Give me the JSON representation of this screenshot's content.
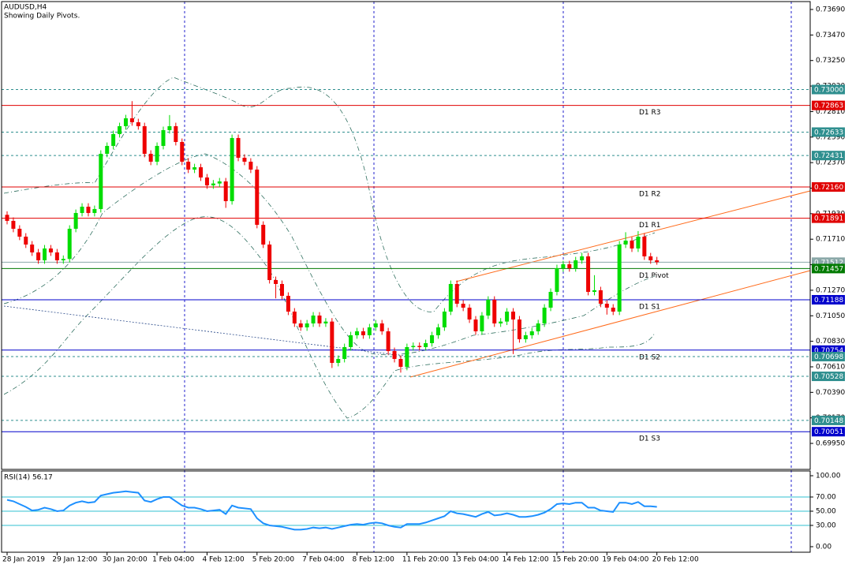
{
  "chart_data": {
    "type": "candlestick",
    "title": "AUDUSD,H4",
    "subtitle": "Showing Daily Pivots.",
    "up_color": "#00dd00",
    "down_color": "#ee0000",
    "ylim": [
      0.69726,
      0.73758
    ],
    "yticks": [
      {
        "value": 0.7369,
        "label": "0.73690"
      },
      {
        "value": 0.7347,
        "label": "0.73470"
      },
      {
        "value": 0.7325,
        "label": "0.73250"
      },
      {
        "value": 0.7303,
        "label": "0.73030"
      },
      {
        "value": 0.7281,
        "label": "0.72810"
      },
      {
        "value": 0.7259,
        "label": "0.72590"
      },
      {
        "value": 0.7237,
        "label": "0.72370"
      },
      {
        "value": 0.7215,
        "label": "0.72150"
      },
      {
        "value": 0.7193,
        "label": "0.71930"
      },
      {
        "value": 0.7171,
        "label": "0.71710"
      },
      {
        "value": 0.7149,
        "label": "0.71490"
      },
      {
        "value": 0.7127,
        "label": "0.71270"
      },
      {
        "value": 0.7105,
        "label": "0.71050"
      },
      {
        "value": 0.7083,
        "label": "0.70830"
      },
      {
        "value": 0.7061,
        "label": "0.70610"
      },
      {
        "value": 0.7039,
        "label": "0.70390"
      },
      {
        "value": 0.7017,
        "label": "0.70170"
      },
      {
        "value": 0.6995,
        "label": "0.69950"
      }
    ],
    "levels": [
      {
        "value": 0.73,
        "label": "0.73000",
        "color": "#2f8f8f",
        "dashed": true
      },
      {
        "value": 0.72863,
        "label": "0.72863",
        "color": "#e00000",
        "dashed": false,
        "name": "D1  R3"
      },
      {
        "value": 0.72633,
        "label": "0.72633",
        "color": "#2f8f8f",
        "dashed": true
      },
      {
        "value": 0.72431,
        "label": "0.72431",
        "color": "#2f8f8f",
        "dashed": true
      },
      {
        "value": 0.7216,
        "label": "0.72160",
        "color": "#e00000",
        "dashed": false,
        "name": "D1  R2"
      },
      {
        "value": 0.71891,
        "label": "0.71891",
        "color": "#e00000",
        "dashed": false,
        "name": "D1  R1"
      },
      {
        "value": 0.71512,
        "label": "0.71512",
        "color": "#8aa8a8",
        "dashed": false
      },
      {
        "value": 0.71457,
        "label": "0.71457",
        "color": "#007a00",
        "dashed": false,
        "name": "D1  Pivot"
      },
      {
        "value": 0.71188,
        "label": "0.71188",
        "color": "#0000cc",
        "dashed": false,
        "name": "D1  S1"
      },
      {
        "value": 0.70754,
        "label": "0.70754",
        "color": "#0000cc",
        "dashed": false,
        "name": "D1  S2"
      },
      {
        "value": 0.70698,
        "label": "0.70698",
        "color": "#2f8f8f",
        "dashed": true
      },
      {
        "value": 0.70528,
        "label": "0.70528",
        "color": "#2f8f8f",
        "dashed": true
      },
      {
        "value": 0.70148,
        "label": "0.70148",
        "color": "#2f8f8f",
        "dashed": true
      },
      {
        "value": 0.70051,
        "label": "0.70051",
        "color": "#0000cc",
        "dashed": false,
        "name": "D1  S3"
      }
    ],
    "time_labels": [
      "28 Jan 2019",
      "29 Jan 12:00",
      "30 Jan 20:00",
      "1 Feb 04:00",
      "4 Feb 12:00",
      "5 Feb 20:00",
      "7 Feb 04:00",
      "8 Feb 12:00",
      "11 Feb 20:00",
      "13 Feb 04:00",
      "14 Feb 12:00",
      "15 Feb 20:00",
      "19 Feb 04:00",
      "20 Feb 12:00"
    ],
    "candles": [
      [
        0.7192,
        0.7195,
        0.71838,
        0.71868
      ],
      [
        0.71868,
        0.71898,
        0.7177,
        0.718
      ],
      [
        0.718,
        0.7183,
        0.71702,
        0.71732
      ],
      [
        0.71732,
        0.71762,
        0.71634,
        0.71664
      ],
      [
        0.71664,
        0.71694,
        0.71566,
        0.71596
      ],
      [
        0.71596,
        0.71626,
        0.71498,
        0.71528
      ],
      [
        0.71528,
        0.7166,
        0.71498,
        0.7163
      ],
      [
        0.7163,
        0.7166,
        0.71566,
        0.71596
      ],
      [
        0.71596,
        0.71626,
        0.71498,
        0.71528
      ],
      [
        0.71528,
        0.7157,
        0.71498,
        0.7154
      ],
      [
        0.7154,
        0.7183,
        0.7151,
        0.718
      ],
      [
        0.718,
        0.71966,
        0.7177,
        0.71936
      ],
      [
        0.71936,
        0.7202,
        0.71906,
        0.7199
      ],
      [
        0.7199,
        0.7202,
        0.71906,
        0.71936
      ],
      [
        0.71936,
        0.72,
        0.71906,
        0.7197
      ],
      [
        0.7197,
        0.72476,
        0.7194,
        0.72446
      ],
      [
        0.72446,
        0.72544,
        0.72416,
        0.72514
      ],
      [
        0.72514,
        0.72646,
        0.72484,
        0.72616
      ],
      [
        0.72616,
        0.72714,
        0.72586,
        0.72684
      ],
      [
        0.72684,
        0.72782,
        0.72654,
        0.72752
      ],
      [
        0.72752,
        0.729,
        0.72688,
        0.72718
      ],
      [
        0.72718,
        0.72748,
        0.72654,
        0.72684
      ],
      [
        0.72684,
        0.72714,
        0.72416,
        0.72446
      ],
      [
        0.72446,
        0.72476,
        0.72348,
        0.72378
      ],
      [
        0.72378,
        0.72544,
        0.72348,
        0.72514
      ],
      [
        0.72514,
        0.7268,
        0.72484,
        0.7265
      ],
      [
        0.7265,
        0.7278,
        0.7262,
        0.72684
      ],
      [
        0.72684,
        0.72714,
        0.72518,
        0.72548
      ],
      [
        0.72548,
        0.72578,
        0.72348,
        0.72378
      ],
      [
        0.72378,
        0.72408,
        0.7228,
        0.7231
      ],
      [
        0.7231,
        0.7236,
        0.7228,
        0.7233
      ],
      [
        0.7233,
        0.7236,
        0.72212,
        0.72242
      ],
      [
        0.72242,
        0.72272,
        0.72144,
        0.72174
      ],
      [
        0.72174,
        0.7222,
        0.72144,
        0.7219
      ],
      [
        0.7219,
        0.72238,
        0.7216,
        0.72208
      ],
      [
        0.72208,
        0.72238,
        0.7198,
        0.72038
      ],
      [
        0.72038,
        0.72612,
        0.72008,
        0.72582
      ],
      [
        0.72582,
        0.72612,
        0.72382,
        0.72412
      ],
      [
        0.72412,
        0.72442,
        0.72348,
        0.72378
      ],
      [
        0.72378,
        0.72408,
        0.7228,
        0.7231
      ],
      [
        0.7231,
        0.7234,
        0.71804,
        0.71834
      ],
      [
        0.71834,
        0.71864,
        0.71634,
        0.71664
      ],
      [
        0.71664,
        0.71694,
        0.71328,
        0.71358
      ],
      [
        0.71358,
        0.71388,
        0.712,
        0.71324
      ],
      [
        0.71324,
        0.71354,
        0.71192,
        0.71222
      ],
      [
        0.71222,
        0.71252,
        0.71056,
        0.71086
      ],
      [
        0.71086,
        0.71116,
        0.70954,
        0.70984
      ],
      [
        0.70984,
        0.71014,
        0.7092,
        0.7095
      ],
      [
        0.7095,
        0.71014,
        0.7092,
        0.70984
      ],
      [
        0.70984,
        0.71082,
        0.70954,
        0.71052
      ],
      [
        0.71052,
        0.71082,
        0.70954,
        0.70984
      ],
      [
        0.70984,
        0.7103,
        0.70954,
        0.71
      ],
      [
        0.71,
        0.7103,
        0.706,
        0.70644
      ],
      [
        0.70644,
        0.70708,
        0.70614,
        0.70678
      ],
      [
        0.70678,
        0.7081,
        0.70648,
        0.7078
      ],
      [
        0.7078,
        0.70912,
        0.7075,
        0.70882
      ],
      [
        0.70882,
        0.70946,
        0.70852,
        0.70916
      ],
      [
        0.70916,
        0.70946,
        0.70852,
        0.70882
      ],
      [
        0.70882,
        0.7098,
        0.70852,
        0.7095
      ],
      [
        0.7095,
        0.71014,
        0.7092,
        0.70984
      ],
      [
        0.70984,
        0.71014,
        0.70886,
        0.70916
      ],
      [
        0.70916,
        0.70946,
        0.70716,
        0.70746
      ],
      [
        0.70746,
        0.70776,
        0.70648,
        0.70678
      ],
      [
        0.70678,
        0.70708,
        0.7056,
        0.7061
      ],
      [
        0.7061,
        0.7081,
        0.7058,
        0.7078
      ],
      [
        0.7078,
        0.7082,
        0.7075,
        0.7079
      ],
      [
        0.7079,
        0.7082,
        0.7075,
        0.7078
      ],
      [
        0.7078,
        0.70844,
        0.7075,
        0.70814
      ],
      [
        0.70814,
        0.70912,
        0.70784,
        0.70882
      ],
      [
        0.70882,
        0.7098,
        0.70852,
        0.7095
      ],
      [
        0.7095,
        0.71116,
        0.7092,
        0.71086
      ],
      [
        0.71086,
        0.71354,
        0.71056,
        0.71324
      ],
      [
        0.71324,
        0.71354,
        0.71124,
        0.71154
      ],
      [
        0.71154,
        0.71184,
        0.7109,
        0.7112
      ],
      [
        0.7112,
        0.7115,
        0.70988,
        0.71018
      ],
      [
        0.71018,
        0.71048,
        0.70886,
        0.70916
      ],
      [
        0.70916,
        0.71082,
        0.70886,
        0.71052
      ],
      [
        0.71052,
        0.71218,
        0.71022,
        0.71188
      ],
      [
        0.71188,
        0.71218,
        0.70954,
        0.70984
      ],
      [
        0.70984,
        0.7103,
        0.70954,
        0.71
      ],
      [
        0.71,
        0.71116,
        0.7097,
        0.71086
      ],
      [
        0.71086,
        0.71116,
        0.7072,
        0.71018
      ],
      [
        0.71018,
        0.71048,
        0.70818,
        0.70848
      ],
      [
        0.70848,
        0.70912,
        0.70818,
        0.70882
      ],
      [
        0.70882,
        0.70946,
        0.70852,
        0.70916
      ],
      [
        0.70916,
        0.71014,
        0.70886,
        0.70984
      ],
      [
        0.70984,
        0.7115,
        0.70954,
        0.7112
      ],
      [
        0.7112,
        0.71286,
        0.7109,
        0.71256
      ],
      [
        0.71256,
        0.7149,
        0.71226,
        0.7146
      ],
      [
        0.7146,
        0.71524,
        0.7143,
        0.71494
      ],
      [
        0.71494,
        0.71524,
        0.7143,
        0.7146
      ],
      [
        0.7146,
        0.71558,
        0.7143,
        0.71528
      ],
      [
        0.71528,
        0.71592,
        0.71498,
        0.71562
      ],
      [
        0.71562,
        0.71592,
        0.71226,
        0.71256
      ],
      [
        0.71256,
        0.714,
        0.71226,
        0.7127
      ],
      [
        0.7127,
        0.713,
        0.71124,
        0.71154
      ],
      [
        0.71154,
        0.71184,
        0.7106,
        0.7112
      ],
      [
        0.7112,
        0.7115,
        0.71056,
        0.71086
      ],
      [
        0.71086,
        0.71694,
        0.71056,
        0.71664
      ],
      [
        0.71664,
        0.7177,
        0.71634,
        0.71698
      ],
      [
        0.71698,
        0.71728,
        0.716,
        0.7163
      ],
      [
        0.7163,
        0.7178,
        0.716,
        0.71732
      ],
      [
        0.71732,
        0.71762,
        0.71532,
        0.71562
      ],
      [
        0.71562,
        0.71592,
        0.71498,
        0.71528
      ],
      [
        0.71528,
        0.71558,
        0.7149,
        0.71512
      ]
    ],
    "rsi_title": "RSI(14) 56.17",
    "rsi_color": "#1e90ff",
    "rsi_ylim": [
      -7.8,
      106.7
    ],
    "rsi_yticks": [
      {
        "value": 100,
        "label": "100.00"
      },
      {
        "value": 70,
        "label": "70.00"
      },
      {
        "value": 50,
        "label": "50.00"
      },
      {
        "value": 30,
        "label": "30.00"
      },
      {
        "value": 0,
        "label": "0.00"
      }
    ],
    "rsi_levels": [
      70,
      50,
      30
    ],
    "rsi": [
      66,
      64,
      60,
      56,
      51,
      52,
      55,
      53,
      50,
      51,
      58,
      62,
      64,
      62,
      63,
      72,
      74,
      76,
      77,
      78,
      77,
      76,
      65,
      63,
      67,
      70,
      70,
      64,
      58,
      55,
      55,
      53,
      50,
      51,
      52,
      46,
      58,
      55,
      54,
      53,
      40,
      33,
      30,
      29,
      28,
      26,
      24,
      24,
      25,
      27,
      26,
      27,
      25,
      27,
      29,
      31,
      32,
      31,
      33,
      34,
      33,
      30,
      28,
      27,
      32,
      32,
      32,
      34,
      37,
      40,
      43,
      50,
      47,
      46,
      44,
      42,
      46,
      49,
      44,
      45,
      47,
      45,
      42,
      42,
      43,
      45,
      48,
      53,
      60,
      61,
      60,
      62,
      62,
      55,
      55,
      51,
      50,
      49,
      62,
      62,
      60,
      63,
      57,
      57,
      56.17
    ]
  }
}
